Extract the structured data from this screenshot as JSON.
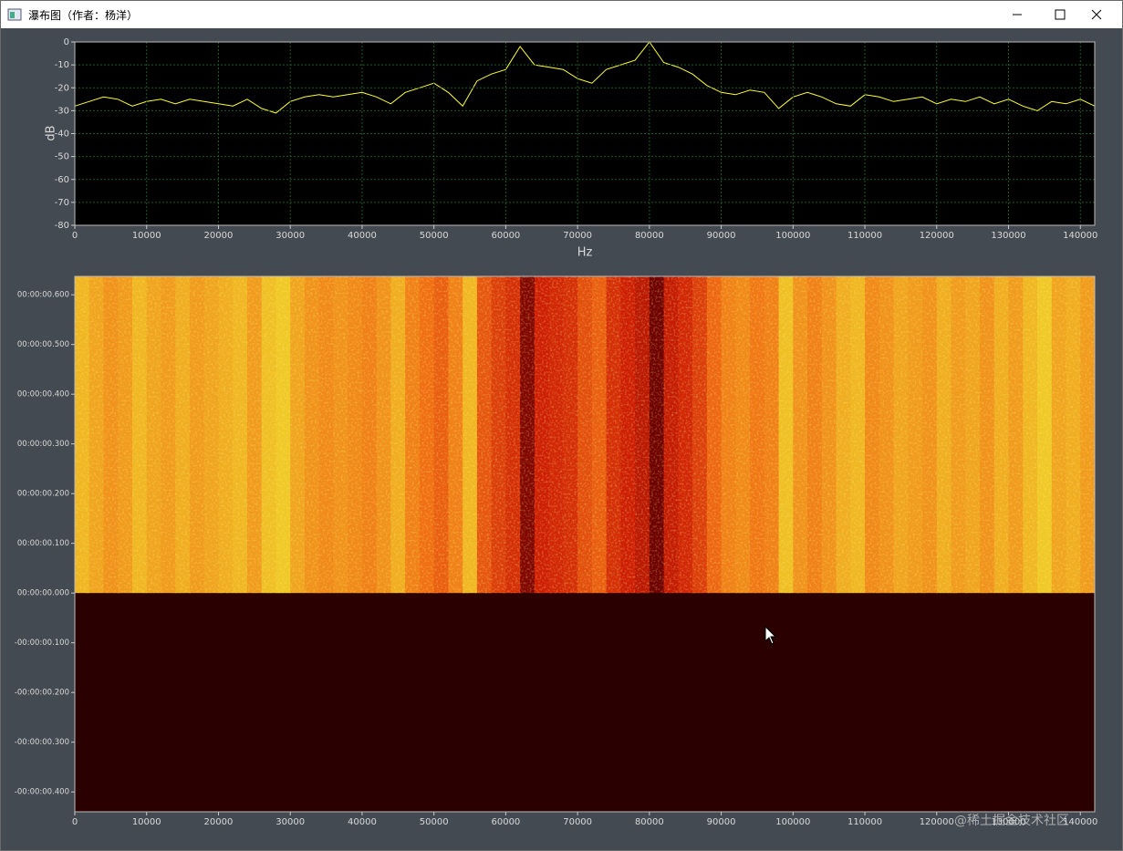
{
  "window_title": "瀑布图（作者：杨洋）",
  "watermark": "@稀土掘金技术社区",
  "chart_data": [
    {
      "type": "line",
      "x_label": "Hz",
      "y_label": "dB",
      "color": "#ffff33",
      "grid": true,
      "xlim": [
        0,
        142000
      ],
      "ylim": [
        -80,
        0
      ],
      "xticks": [
        0,
        10000,
        20000,
        30000,
        40000,
        50000,
        60000,
        70000,
        80000,
        90000,
        100000,
        110000,
        120000,
        130000,
        140000
      ],
      "yticks": [
        0,
        -10,
        -20,
        -30,
        -40,
        -50,
        -60,
        -70,
        -80
      ],
      "x": [
        0,
        2000,
        4000,
        6000,
        8000,
        10000,
        12000,
        14000,
        16000,
        18000,
        20000,
        22000,
        24000,
        26000,
        28000,
        30000,
        32000,
        34000,
        36000,
        38000,
        40000,
        42000,
        44000,
        46000,
        48000,
        50000,
        52000,
        54000,
        56000,
        58000,
        60000,
        62000,
        64000,
        66000,
        68000,
        70000,
        72000,
        74000,
        76000,
        78000,
        80000,
        82000,
        84000,
        86000,
        88000,
        90000,
        92000,
        94000,
        96000,
        98000,
        100000,
        102000,
        104000,
        106000,
        108000,
        110000,
        112000,
        114000,
        116000,
        118000,
        120000,
        122000,
        124000,
        126000,
        128000,
        130000,
        132000,
        134000,
        136000,
        138000,
        140000,
        142000
      ],
      "values": [
        -28,
        -26,
        -24,
        -25,
        -28,
        -26,
        -25,
        -27,
        -25,
        -26,
        -27,
        -28,
        -25,
        -29,
        -31,
        -26,
        -24,
        -23,
        -24,
        -23,
        -22,
        -24,
        -27,
        -22,
        -20,
        -18,
        -22,
        -28,
        -17,
        -14,
        -12,
        -2,
        -10,
        -11,
        -12,
        -16,
        -18,
        -12,
        -10,
        -8,
        0,
        -9,
        -11,
        -14,
        -19,
        -22,
        -23,
        -21,
        -22,
        -29,
        -24,
        -22,
        -24,
        -27,
        -28,
        -23,
        -24,
        -26,
        -25,
        -24,
        -27,
        -25,
        -26,
        -24,
        -27,
        -25,
        -28,
        -30,
        -26,
        -27,
        -25,
        -28
      ]
    },
    {
      "type": "heatmap",
      "xlim": [
        0,
        142000
      ],
      "ylim": [
        -0.44,
        0.637
      ],
      "xticks": [
        0,
        10000,
        20000,
        30000,
        40000,
        50000,
        60000,
        70000,
        80000,
        90000,
        100000,
        110000,
        120000,
        130000,
        140000
      ],
      "yticks": [
        {
          "value": 0.6,
          "label": "00:00:00.600"
        },
        {
          "value": 0.5,
          "label": "00:00:00.500"
        },
        {
          "value": 0.4,
          "label": "00:00:00.400"
        },
        {
          "value": 0.3,
          "label": "00:00:00.300"
        },
        {
          "value": 0.2,
          "label": "00:00:00.200"
        },
        {
          "value": 0.1,
          "label": "00:00:00.100"
        },
        {
          "value": 0,
          "label": "00:00:00.000"
        },
        {
          "value": -0.1,
          "label": "-00:00:00.100"
        },
        {
          "value": -0.2,
          "label": "-00:00:00.200"
        },
        {
          "value": -0.3,
          "label": "-00:00:00.300"
        },
        {
          "value": -0.4,
          "label": "-00:00:00.400"
        }
      ],
      "x": [
        0,
        2000,
        4000,
        6000,
        8000,
        10000,
        12000,
        14000,
        16000,
        18000,
        20000,
        22000,
        24000,
        26000,
        28000,
        30000,
        32000,
        34000,
        36000,
        38000,
        40000,
        42000,
        44000,
        46000,
        48000,
        50000,
        52000,
        54000,
        56000,
        58000,
        60000,
        62000,
        64000,
        66000,
        68000,
        70000,
        72000,
        74000,
        76000,
        78000,
        80000,
        82000,
        84000,
        86000,
        88000,
        90000,
        92000,
        94000,
        96000,
        98000,
        100000,
        102000,
        104000,
        106000,
        108000,
        110000,
        112000,
        114000,
        116000,
        118000,
        120000,
        122000,
        124000,
        126000,
        128000,
        130000,
        132000,
        134000,
        136000,
        138000,
        140000,
        142000
      ],
      "values": [
        -28,
        -26,
        -24,
        -25,
        -28,
        -26,
        -25,
        -27,
        -25,
        -26,
        -27,
        -28,
        -25,
        -29,
        -31,
        -26,
        -24,
        -23,
        -24,
        -23,
        -22,
        -24,
        -27,
        -22,
        -20,
        -18,
        -22,
        -28,
        -17,
        -14,
        -12,
        -2,
        -10,
        -11,
        -12,
        -16,
        -18,
        -12,
        -10,
        -8,
        0,
        -9,
        -11,
        -14,
        -19,
        -22,
        -23,
        -21,
        -22,
        -29,
        -24,
        -22,
        -24,
        -27,
        -28,
        -23,
        -24,
        -26,
        -25,
        -24,
        -27,
        -25,
        -26,
        -24,
        -27,
        -25,
        -28,
        -30,
        -26,
        -27,
        -25,
        -28
      ]
    }
  ]
}
